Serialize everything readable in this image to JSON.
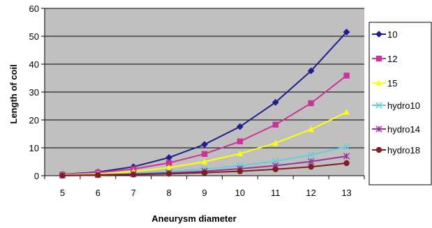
{
  "chart_data": {
    "type": "line",
    "title": "",
    "xlabel": "Aneurysm diameter",
    "ylabel": "Length of coil",
    "categories": [
      5,
      6,
      7,
      8,
      9,
      10,
      11,
      12,
      13
    ],
    "ylim": [
      0,
      60
    ],
    "yticks": [
      0,
      10,
      20,
      30,
      40,
      50,
      60
    ],
    "grid": "horizontal",
    "plot_background": "#c0c0c0",
    "legend_position": "right",
    "series": [
      {
        "name": "10",
        "marker": "diamond",
        "color": "#1f1f8f",
        "values": [
          0.5,
          1.3,
          3.2,
          6.5,
          11.2,
          17.6,
          26.3,
          37.6,
          51.5
        ]
      },
      {
        "name": "12",
        "marker": "square",
        "color": "#cc3399",
        "values": [
          0.4,
          1.1,
          2.4,
          4.6,
          7.8,
          12.3,
          18.3,
          26.0,
          35.9
        ]
      },
      {
        "name": "15",
        "marker": "triangle",
        "color": "#ffff00",
        "values": [
          0.3,
          0.7,
          1.5,
          2.9,
          5.0,
          7.9,
          11.7,
          16.6,
          22.8
        ]
      },
      {
        "name": "hydro10",
        "marker": "x",
        "color": "#66ccdd",
        "values": [
          0.2,
          0.4,
          0.8,
          1.5,
          2.4,
          3.6,
          5.2,
          7.5,
          10.4
        ]
      },
      {
        "name": "hydro14",
        "marker": "asterisk",
        "color": "#993399",
        "values": [
          0.1,
          0.3,
          0.6,
          1.0,
          1.6,
          2.5,
          3.6,
          5.1,
          7.0
        ]
      },
      {
        "name": "hydro18",
        "marker": "circle",
        "color": "#7f1f1f",
        "values": [
          0.0,
          0.2,
          0.4,
          0.7,
          1.1,
          1.6,
          2.3,
          3.2,
          4.5
        ]
      }
    ]
  }
}
